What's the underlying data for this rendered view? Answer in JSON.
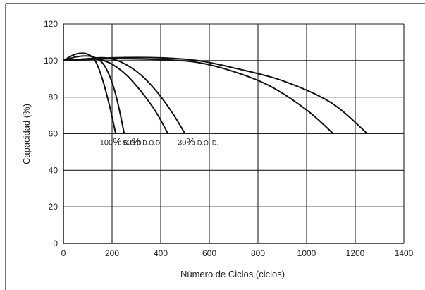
{
  "chart_data": {
    "type": "line",
    "title": "",
    "xlabel": "Número de Ciclos   (ciclos)",
    "ylabel": "Capacidad   (%)",
    "xlim": [
      0,
      1400
    ],
    "ylim": [
      0,
      120
    ],
    "x_ticks": [
      "0",
      "200",
      "400",
      "600",
      "800",
      "1000",
      "1200",
      "1400"
    ],
    "y_ticks": [
      "0",
      "20",
      "40",
      "60",
      "80",
      "100",
      "120"
    ],
    "grid": true,
    "legend": "none",
    "series": [
      {
        "name": "100% D.O.D.",
        "x": [
          0,
          40,
          70,
          100,
          130,
          160,
          190,
          215
        ],
        "y": [
          100,
          103,
          104,
          103.5,
          100,
          90,
          75,
          60
        ]
      },
      {
        "name": "100% D.O.D.",
        "x": [
          0,
          50,
          100,
          140,
          170,
          200,
          225,
          250
        ],
        "y": [
          100,
          102,
          102.5,
          101,
          97,
          88,
          76,
          60
        ]
      },
      {
        "name": "50% D.O.D.",
        "x": [
          0,
          100,
          150,
          200,
          260,
          320,
          380,
          430
        ],
        "y": [
          100,
          101,
          100.5,
          98,
          92,
          83,
          72,
          60
        ]
      },
      {
        "name": "50% D.O.D.",
        "x": [
          0,
          100,
          170,
          240,
          320,
          390,
          450,
          500
        ],
        "y": [
          100,
          101,
          101.5,
          99,
          92,
          82,
          71,
          60
        ]
      },
      {
        "name": "30% D.O.D.",
        "x": [
          0,
          200,
          400,
          550,
          700,
          850,
          1000,
          1110
        ],
        "y": [
          100,
          101,
          100.5,
          99,
          94,
          86,
          73,
          60
        ]
      },
      {
        "name": "30% D.O.D.",
        "x": [
          0,
          200,
          400,
          550,
          700,
          900,
          1100,
          1250
        ],
        "y": [
          100,
          101.5,
          101.5,
          100,
          96,
          89,
          77,
          60
        ]
      }
    ],
    "annotations": [
      {
        "text": "100",
        "suffix": "%",
        "dod": "D.O.D."
      },
      {
        "text": "50",
        "suffix": "%",
        "dod": "D.O.D."
      },
      {
        "text": "30",
        "suffix": "%",
        "dod": "D.O. D."
      }
    ]
  }
}
